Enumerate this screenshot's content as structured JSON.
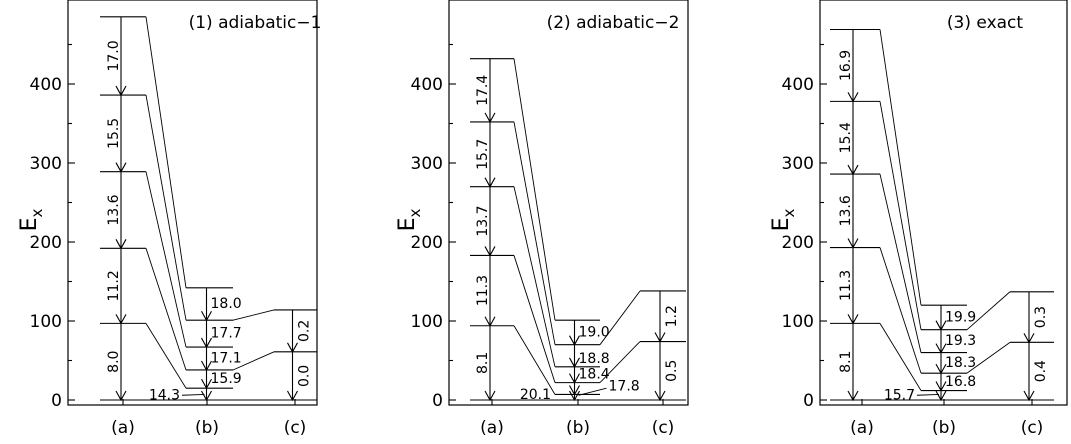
{
  "figure": {
    "ylabel_main": "E",
    "ylabel_sub": "x",
    "y_ticks": [
      0,
      100,
      200,
      300,
      400
    ],
    "columns": [
      "(a)",
      "(b)",
      "(c)"
    ]
  },
  "panels": [
    {
      "title": "(1) adiabatic−1",
      "levels": {
        "a": [
          0,
          97,
          192,
          289,
          386,
          485
        ],
        "b": [
          0,
          15,
          38,
          67,
          101,
          142
        ],
        "c": [
          0,
          61,
          114
        ]
      },
      "trans_a": [
        "8.0",
        "11.2",
        "13.6",
        "15.5",
        "17.0"
      ],
      "trans_b": [
        "14.3",
        "15.9",
        "17.1",
        "17.7",
        "18.0"
      ],
      "trans_c": [
        "0.0",
        "0.2"
      ]
    },
    {
      "title": "(2) adiabatic−2",
      "levels": {
        "a": [
          0,
          94,
          183,
          270,
          352,
          432
        ],
        "b": [
          0,
          7,
          22,
          42,
          70,
          101
        ],
        "c": [
          0,
          74,
          138
        ]
      },
      "trans_a": [
        "8.1",
        "11.3",
        "13.7",
        "15.7",
        "17.4"
      ],
      "trans_b": [
        "20.1",
        "17.8",
        "18.4",
        "18.8",
        "19.0"
      ],
      "trans_c": [
        "0.5",
        "1.2"
      ]
    },
    {
      "title": "(3) exact",
      "levels": {
        "a": [
          0,
          97,
          193,
          286,
          378,
          469
        ],
        "b": [
          0,
          12,
          34,
          60,
          89,
          120
        ],
        "c": [
          0,
          73,
          137
        ]
      },
      "trans_a": [
        "8.1",
        "11.3",
        "13.6",
        "15.4",
        "16.9"
      ],
      "trans_b": [
        "15.7",
        "16.8",
        "18.3",
        "19.3",
        "19.9"
      ],
      "trans_c": [
        "0.4",
        "0.3"
      ]
    }
  ]
}
